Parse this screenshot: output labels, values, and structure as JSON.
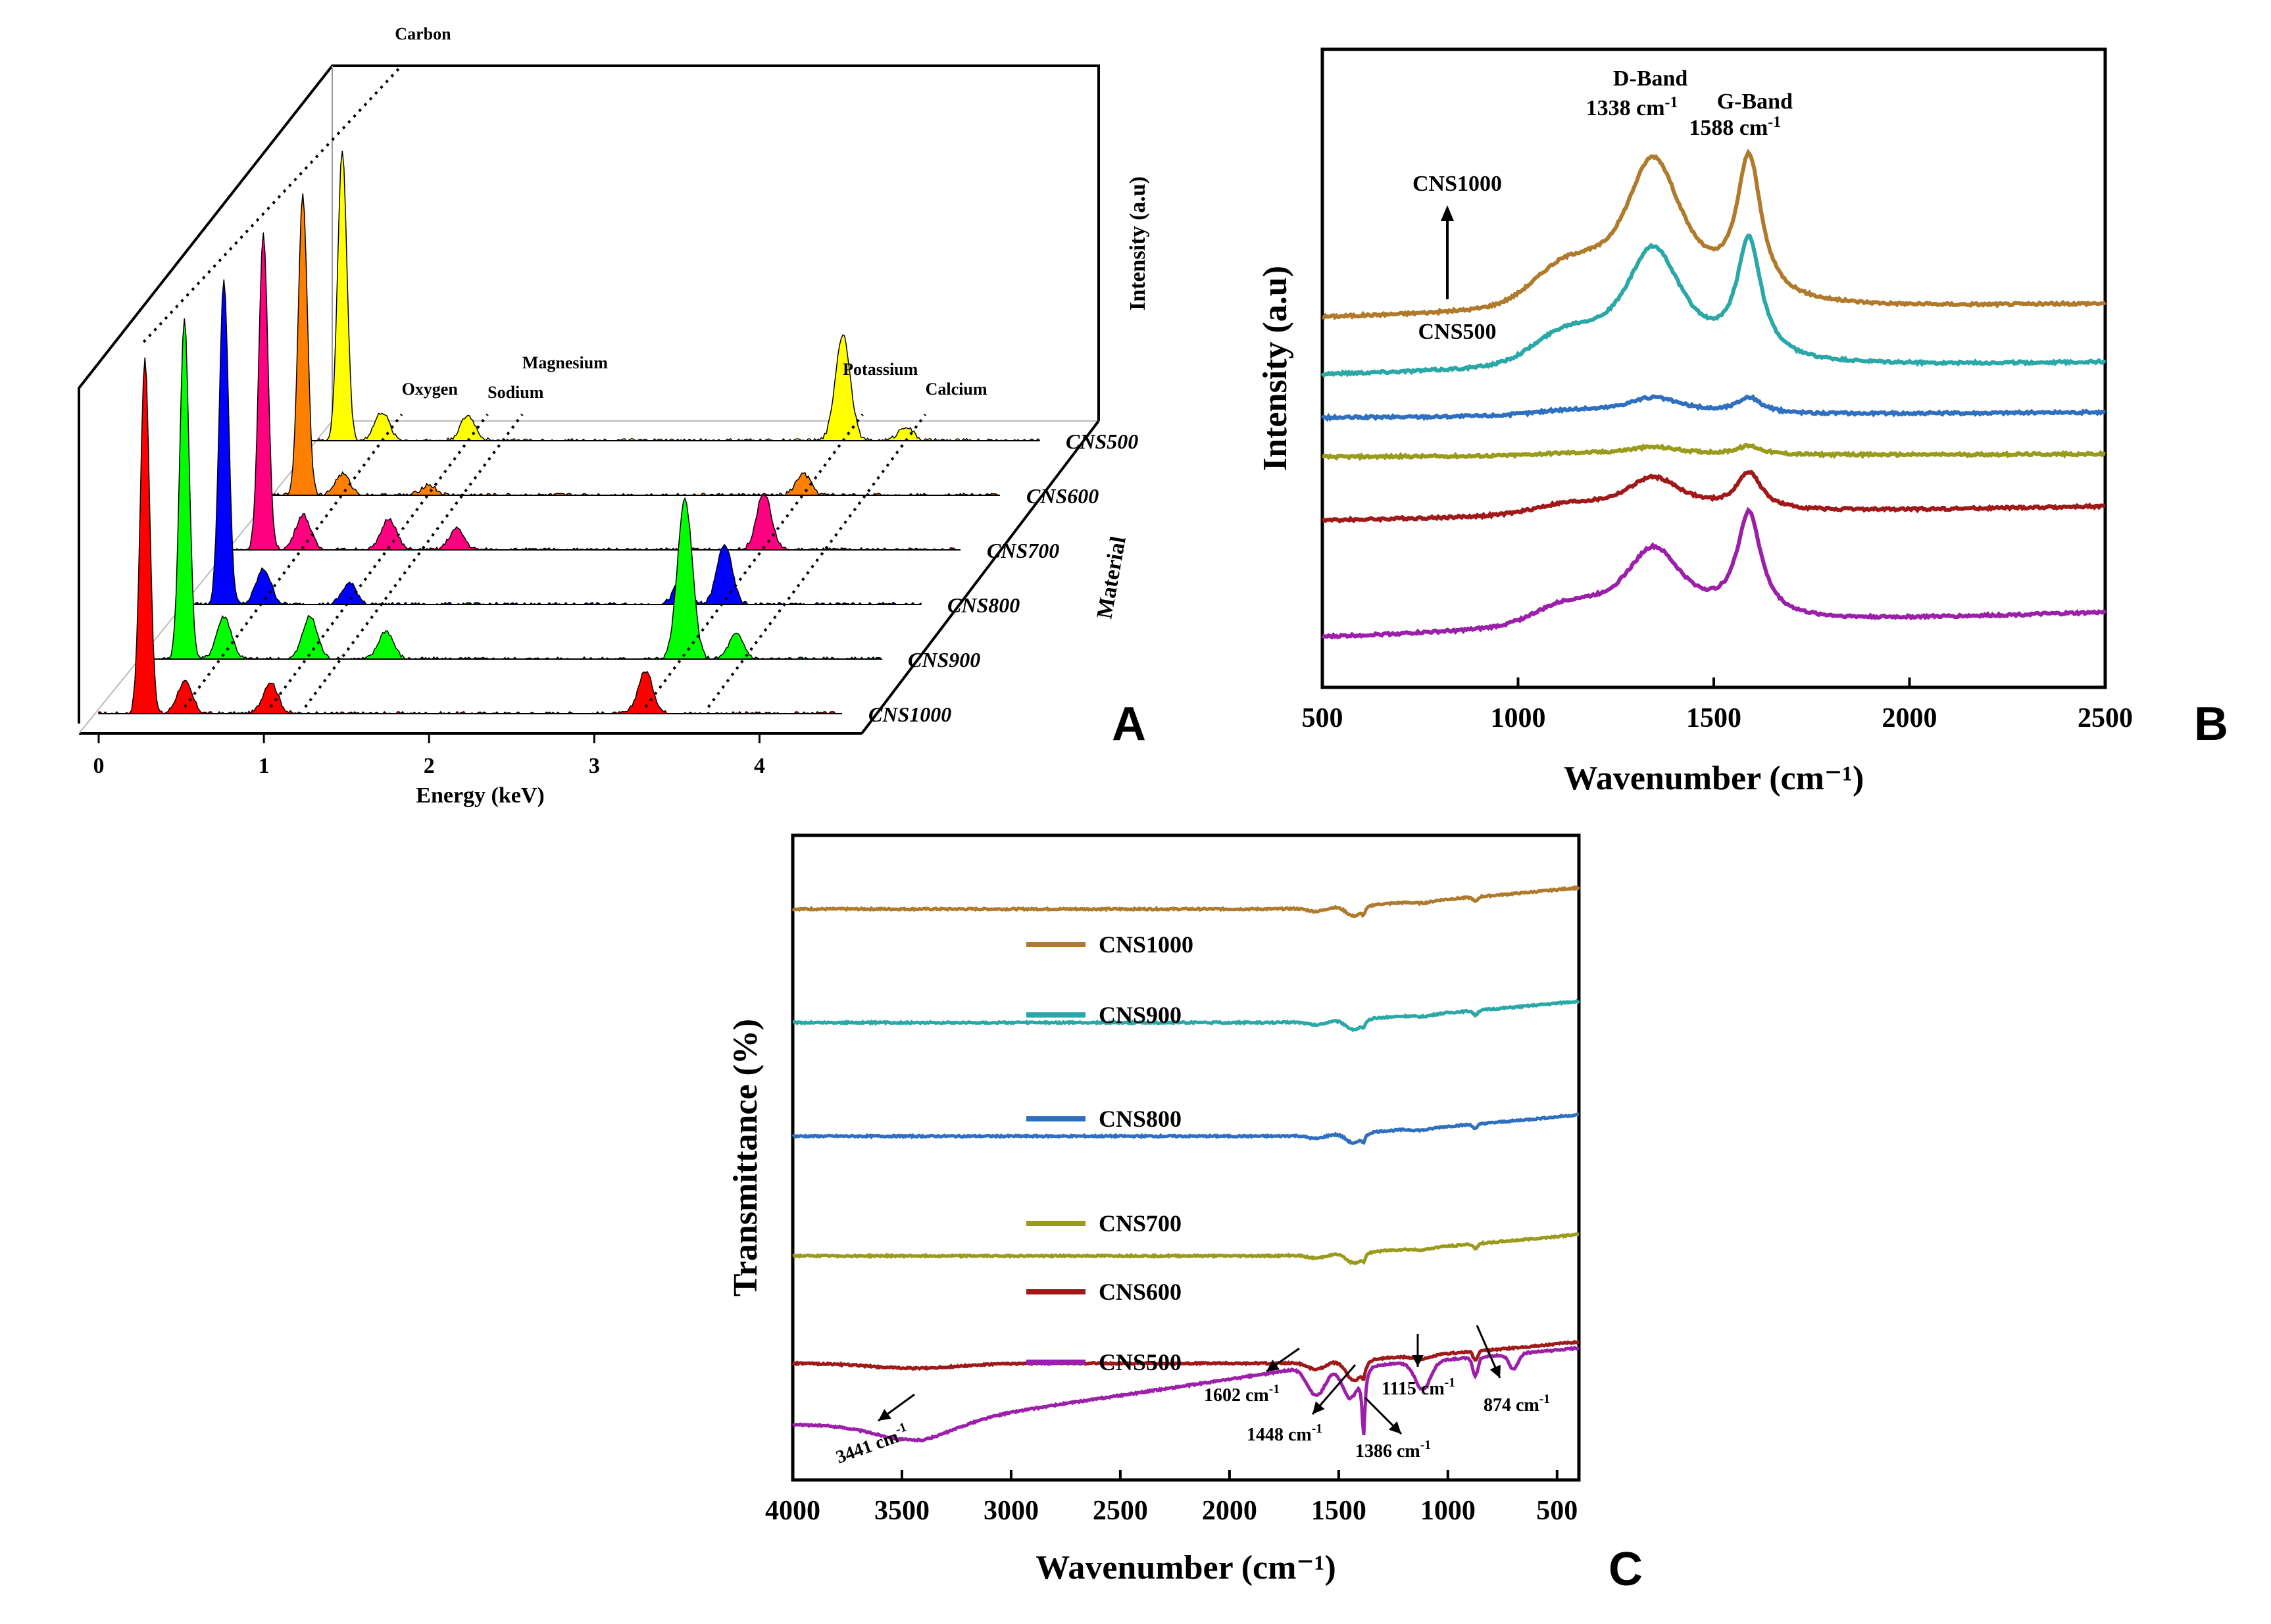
{
  "chart_data": [
    {
      "panel": "A",
      "type": "line",
      "subtype": "3d-stacked-edx-spectra",
      "xlabel": "Energy (keV)",
      "zlabel": "Intensity (a.u)",
      "ylabel": "Material",
      "xticks": [
        "0",
        "1",
        "2",
        "3",
        "4"
      ],
      "xlim": [
        0,
        4.5
      ],
      "elements": [
        {
          "name": "Carbon",
          "energy": 0.28
        },
        {
          "name": "Oxygen",
          "energy": 0.52
        },
        {
          "name": "Sodium",
          "energy": 1.04
        },
        {
          "name": "Magnesium",
          "energy": 1.25
        },
        {
          "name": "Potassium",
          "energy": 3.31
        },
        {
          "name": "Calcium",
          "energy": 3.69
        }
      ],
      "series": [
        {
          "name": "CNS1000",
          "color": "#ff0000",
          "peaks": [
            [
              0.28,
              100
            ],
            [
              0.52,
              9
            ],
            [
              1.04,
              9
            ],
            [
              3.31,
              12
            ]
          ]
        },
        {
          "name": "CNS900",
          "color": "#00ff00",
          "peaks": [
            [
              0.28,
              96
            ],
            [
              0.52,
              12
            ],
            [
              1.04,
              12
            ],
            [
              1.5,
              8
            ],
            [
              3.31,
              45
            ],
            [
              3.62,
              7
            ]
          ]
        },
        {
          "name": "CNS800",
          "color": "#0000ff",
          "peaks": [
            [
              0.28,
              92
            ],
            [
              0.52,
              10
            ],
            [
              1.04,
              6
            ],
            [
              3.05,
              7
            ],
            [
              3.31,
              17
            ]
          ]
        },
        {
          "name": "CNS700",
          "color": "#ff0080",
          "peaks": [
            [
              0.28,
              89
            ],
            [
              0.52,
              10
            ],
            [
              1.04,
              9
            ],
            [
              1.45,
              6
            ],
            [
              3.31,
              16
            ]
          ]
        },
        {
          "name": "CNS600",
          "color": "#ff8000",
          "peaks": [
            [
              0.28,
              85
            ],
            [
              0.52,
              6
            ],
            [
              1.04,
              3
            ],
            [
              3.31,
              6
            ]
          ]
        },
        {
          "name": "CNS500",
          "color": "#ffff00",
          "peaks": [
            [
              0.28,
              82
            ],
            [
              0.52,
              8
            ],
            [
              1.04,
              7
            ],
            [
              3.31,
              30
            ],
            [
              3.69,
              4
            ]
          ]
        }
      ]
    },
    {
      "panel": "B",
      "type": "line",
      "subtype": "raman-stacked",
      "xlabel": "Wavenumber (cm⁻¹)",
      "ylabel": "Intensity (a.u)",
      "xlim": [
        500,
        2500
      ],
      "xticks": [
        "500",
        "1000",
        "1500",
        "2000",
        "2500"
      ],
      "annotations": {
        "d_band": {
          "name": "D-Band",
          "value": "1338 cm",
          "sup": "-1",
          "position": 1338
        },
        "g_band": {
          "name": "G-Band",
          "value": "1588 cm",
          "sup": "-1",
          "position": 1588
        },
        "arrow_top": "CNS1000",
        "arrow_bottom": "CNS500"
      },
      "series": [
        {
          "name": "CNS1000",
          "color": "#b07a2c",
          "offset": 5.2,
          "d": 2.15,
          "g": 1.95,
          "baseline_rise": 0.2
        },
        {
          "name": "CNS900",
          "color": "#2aa7a7",
          "offset": 4.4,
          "d": 1.7,
          "g": 1.65,
          "baseline_rise": 0.18
        },
        {
          "name": "CNS800",
          "color": "#2f6fbf",
          "offset": 3.8,
          "d": 0.25,
          "g": 0.22,
          "baseline_rise": 0.08
        },
        {
          "name": "CNS700",
          "color": "#9a9a1c",
          "offset": 3.25,
          "d": 0.12,
          "g": 0.12,
          "baseline_rise": 0.04
        },
        {
          "name": "CNS600",
          "color": "#a01818",
          "offset": 2.35,
          "d": 0.52,
          "g": 0.52,
          "baseline_rise": 0.2
        },
        {
          "name": "CNS500",
          "color": "#9b1fa8",
          "offset": 0.7,
          "d": 1.1,
          "g": 1.45,
          "baseline_rise": 0.35
        }
      ]
    },
    {
      "panel": "C",
      "type": "line",
      "subtype": "ftir-stacked",
      "xlabel": "Wavenumber (cm⁻¹)",
      "ylabel": "Transmittance (%)",
      "xlim": [
        4000,
        400
      ],
      "xticks": [
        "4000",
        "3500",
        "3000",
        "2500",
        "2000",
        "1500",
        "1000",
        "500"
      ],
      "series": [
        {
          "name": "CNS1000",
          "color": "#b07a2c",
          "offset": 9.3
        },
        {
          "name": "CNS900",
          "color": "#2aa7a7",
          "offset": 7.45
        },
        {
          "name": "CNS800",
          "color": "#2f6fbf",
          "offset": 5.6
        },
        {
          "name": "CNS700",
          "color": "#9a9a1c",
          "offset": 3.65
        },
        {
          "name": "CNS600",
          "color": "#a01818",
          "offset": 1.9
        },
        {
          "name": "CNS500",
          "color": "#9b1fa8",
          "offset": 0.9
        }
      ],
      "peak_annotations": [
        {
          "label": "3441 cm",
          "sup": "-1",
          "wavenumber": 3441
        },
        {
          "label": "1602 cm",
          "sup": "-1",
          "wavenumber": 1602
        },
        {
          "label": "1448 cm",
          "sup": "-1",
          "wavenumber": 1448
        },
        {
          "label": "1386 cm",
          "sup": "-1",
          "wavenumber": 1386
        },
        {
          "label": "1115 cm",
          "sup": "-1",
          "wavenumber": 1115
        },
        {
          "label": "874 cm",
          "sup": "-1",
          "wavenumber": 874
        }
      ]
    }
  ],
  "panel_letters": {
    "a": "A",
    "b": "B",
    "c": "C"
  }
}
